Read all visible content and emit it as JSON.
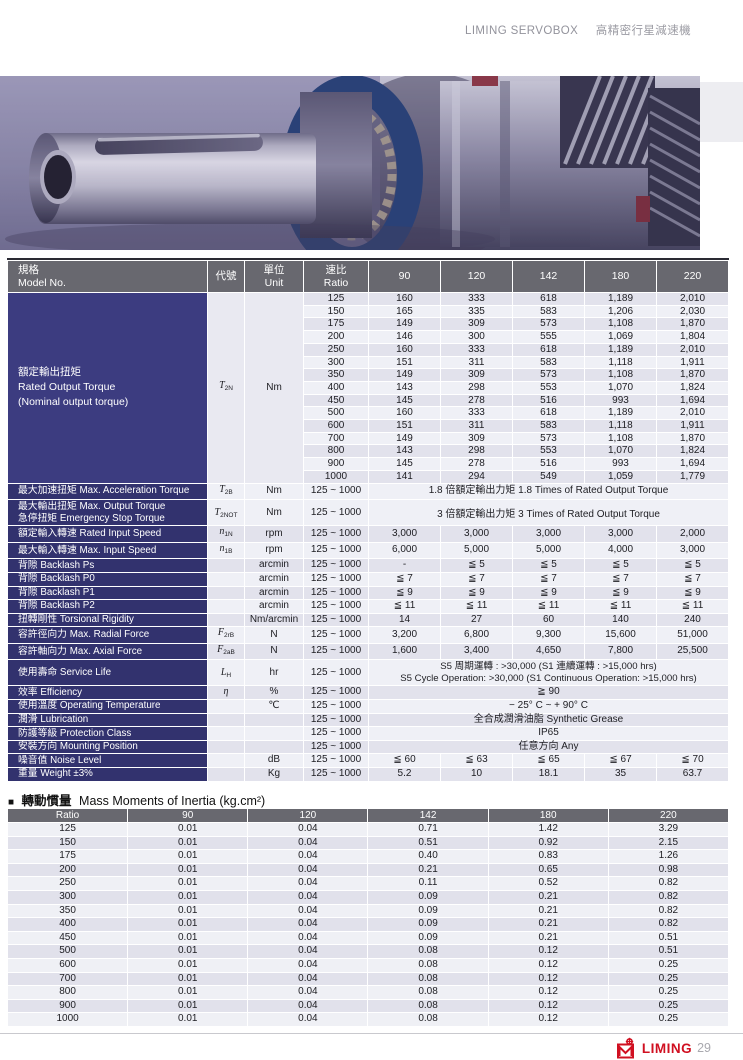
{
  "page": {
    "header_brand": "LIMING SERVOBOX",
    "header_product": "高精密行星減速機",
    "footer_brand": "LIMING",
    "page_number": "29",
    "bullet": "■",
    "accent_red": "#d01021",
    "header_gray": "#68686f",
    "label_navy": "#32326e",
    "label_indigo": "#3c3c80"
  },
  "main_table": {
    "headers": {
      "model_zh": "規格",
      "model_en": "Model No.",
      "symbol": "代號",
      "unit_zh": "單位",
      "unit_en": "Unit",
      "ratio_zh": "速比",
      "ratio_en": "Ratio",
      "sizes": [
        "90",
        "120",
        "142",
        "180",
        "220"
      ]
    },
    "torque_section": {
      "label_zh": "額定輸出扭矩",
      "label_en": "Rated Output Torque",
      "label_en2": "(Nominal output torque)",
      "symbol": {
        "base": "T",
        "sub": "2N"
      },
      "unit": "Nm",
      "rows": [
        {
          "ratio": "125",
          "values": [
            "160",
            "333",
            "618",
            "1,189",
            "2,010"
          ]
        },
        {
          "ratio": "150",
          "values": [
            "165",
            "335",
            "583",
            "1,206",
            "2,030"
          ]
        },
        {
          "ratio": "175",
          "values": [
            "149",
            "309",
            "573",
            "1,108",
            "1,870"
          ]
        },
        {
          "ratio": "200",
          "values": [
            "146",
            "300",
            "555",
            "1,069",
            "1,804"
          ]
        },
        {
          "ratio": "250",
          "values": [
            "160",
            "333",
            "618",
            "1,189",
            "2,010"
          ]
        },
        {
          "ratio": "300",
          "values": [
            "151",
            "311",
            "583",
            "1,118",
            "1,911"
          ]
        },
        {
          "ratio": "350",
          "values": [
            "149",
            "309",
            "573",
            "1,108",
            "1,870"
          ]
        },
        {
          "ratio": "400",
          "values": [
            "143",
            "298",
            "553",
            "1,070",
            "1,824"
          ]
        },
        {
          "ratio": "450",
          "values": [
            "145",
            "278",
            "516",
            "993",
            "1,694"
          ]
        },
        {
          "ratio": "500",
          "values": [
            "160",
            "333",
            "618",
            "1,189",
            "2,010"
          ]
        },
        {
          "ratio": "600",
          "values": [
            "151",
            "311",
            "583",
            "1,118",
            "1,911"
          ]
        },
        {
          "ratio": "700",
          "values": [
            "149",
            "309",
            "573",
            "1,108",
            "1,870"
          ]
        },
        {
          "ratio": "800",
          "values": [
            "143",
            "298",
            "553",
            "1,070",
            "1,824"
          ]
        },
        {
          "ratio": "900",
          "values": [
            "145",
            "278",
            "516",
            "993",
            "1,694"
          ]
        },
        {
          "ratio": "1000",
          "values": [
            "141",
            "294",
            "549",
            "1,059",
            "1,779"
          ]
        }
      ]
    },
    "spec_rows": [
      {
        "label": [
          [
            "最大加速扭矩",
            "Max. Acceleration Torque"
          ]
        ],
        "symbol": {
          "base": "T",
          "sub": "2B"
        },
        "unit": "Nm",
        "ratio": "125 ~ 1000",
        "span": "1.8 倍額定輸出力矩  1.8 Times of Rated Output Torque"
      },
      {
        "label": [
          [
            "最大輸出扭矩",
            "Max. Output Torque"
          ],
          [
            "急停扭矩",
            "Emergency Stop Torque"
          ]
        ],
        "symbol": {
          "base": "T",
          "sub": "2NOT"
        },
        "unit": "Nm",
        "ratio": "125 ~ 1000",
        "span": "3 倍額定輸出力矩  3 Times of Rated Output Torque",
        "tall": true
      },
      {
        "label": [
          [
            "額定輸入轉速",
            "Rated Input Speed"
          ]
        ],
        "symbol": {
          "base": "n",
          "sub": "1N"
        },
        "unit": "rpm",
        "ratio": "125 ~ 1000",
        "values": [
          "3,000",
          "3,000",
          "3,000",
          "3,000",
          "2,000"
        ]
      },
      {
        "label": [
          [
            "最大輸入轉速",
            "Max. Input Speed"
          ]
        ],
        "symbol": {
          "base": "n",
          "sub": "1B"
        },
        "unit": "rpm",
        "ratio": "125 ~ 1000",
        "values": [
          "6,000",
          "5,000",
          "5,000",
          "4,000",
          "3,000"
        ]
      },
      {
        "label": [
          [
            "背隙",
            "Backlash Ps"
          ]
        ],
        "unit": "arcmin",
        "ratio": "125 ~ 1000",
        "values": [
          "-",
          "≦ 5",
          "≦ 5",
          "≦ 5",
          "≦ 5"
        ]
      },
      {
        "label": [
          [
            "背隙",
            "Backlash P0"
          ]
        ],
        "unit": "arcmin",
        "ratio": "125 ~ 1000",
        "values": [
          "≦ 7",
          "≦ 7",
          "≦ 7",
          "≦ 7",
          "≦ 7"
        ]
      },
      {
        "label": [
          [
            "背隙",
            "Backlash P1"
          ]
        ],
        "unit": "arcmin",
        "ratio": "125 ~ 1000",
        "values": [
          "≦ 9",
          "≦ 9",
          "≦ 9",
          "≦ 9",
          "≦ 9"
        ]
      },
      {
        "label": [
          [
            "背隙",
            "Backlash P2"
          ]
        ],
        "unit": "arcmin",
        "ratio": "125 ~ 1000",
        "values": [
          "≦ 11",
          "≦ 11",
          "≦ 11",
          "≦ 11",
          "≦ 11"
        ]
      },
      {
        "label": [
          [
            "扭轉剛性",
            "Torsional Rigidity"
          ]
        ],
        "unit": "Nm/arcmin",
        "ratio": "125 ~ 1000",
        "values": [
          "14",
          "27",
          "60",
          "140",
          "240"
        ]
      },
      {
        "label": [
          [
            "容許徑向力",
            "Max. Radial Force"
          ]
        ],
        "symbol": {
          "base": "F",
          "sub": "2rB"
        },
        "unit": "N",
        "ratio": "125 ~ 1000",
        "values": [
          "3,200",
          "6,800",
          "9,300",
          "15,600",
          "51,000"
        ]
      },
      {
        "label": [
          [
            "容許軸向力",
            "Max. Axial Force"
          ]
        ],
        "symbol": {
          "base": "F",
          "sub": "2aB"
        },
        "unit": "N",
        "ratio": "125 ~ 1000",
        "values": [
          "1,600",
          "3,400",
          "4,650",
          "7,800",
          "25,500"
        ]
      },
      {
        "label": [
          [
            "使用壽命",
            "Service Life"
          ]
        ],
        "symbol": {
          "base": "L",
          "sub": "H"
        },
        "unit": "hr",
        "ratio": "125 ~ 1000",
        "span_lines": [
          "S5 周期運轉 : >30,000 (S1 連續運轉 : >15,000 hrs)",
          "S5 Cycle Operation: >30,000 (S1 Continuous Operation: >15,000 hrs)"
        ],
        "tall": true
      },
      {
        "label": [
          [
            "效率",
            "Efficiency"
          ]
        ],
        "symbol": {
          "base": "η",
          "sub": ""
        },
        "unit": "%",
        "ratio": "125 ~ 1000",
        "span": "≧ 90"
      },
      {
        "label": [
          [
            "使用溫度",
            "Operating Temperature"
          ]
        ],
        "unit": "℃",
        "ratio": "125 ~ 1000",
        "span": "− 25° C  ~  + 90° C"
      },
      {
        "label": [
          [
            "潤滑",
            "Lubrication"
          ]
        ],
        "unit": "",
        "ratio": "125 ~ 1000",
        "span": "全合成潤滑油脂  Synthetic Grease"
      },
      {
        "label": [
          [
            "防護等級",
            "Protection Class"
          ]
        ],
        "unit": "",
        "ratio": "125 ~ 1000",
        "span": "IP65"
      },
      {
        "label": [
          [
            "安裝方向",
            "Mounting Position"
          ]
        ],
        "unit": "",
        "ratio": "125 ~ 1000",
        "span": "任意方向  Any"
      },
      {
        "label": [
          [
            "噪音值",
            "Noise Level"
          ]
        ],
        "unit": "dB",
        "ratio": "125 ~ 1000",
        "values": [
          "≦ 60",
          "≦ 63",
          "≦ 65",
          "≦ 67",
          "≦ 70"
        ]
      },
      {
        "label": [
          [
            "重量",
            "Weight  ±3%"
          ]
        ],
        "unit": "Kg",
        "ratio": "125 ~ 1000",
        "values": [
          "5.2",
          "10",
          "18.1",
          "35",
          "63.7"
        ]
      }
    ]
  },
  "inertia_table": {
    "title_zh": "轉動慣量",
    "title_en": "Mass Moments of Inertia (kg.cm²)",
    "headers": [
      "Ratio",
      "90",
      "120",
      "142",
      "180",
      "220"
    ],
    "rows": [
      [
        "125",
        "0.01",
        "0.04",
        "0.71",
        "1.42",
        "3.29"
      ],
      [
        "150",
        "0.01",
        "0.04",
        "0.51",
        "0.92",
        "2.15"
      ],
      [
        "175",
        "0.01",
        "0.04",
        "0.40",
        "0.83",
        "1.26"
      ],
      [
        "200",
        "0.01",
        "0.04",
        "0.21",
        "0.65",
        "0.98"
      ],
      [
        "250",
        "0.01",
        "0.04",
        "0.11",
        "0.52",
        "0.82"
      ],
      [
        "300",
        "0.01",
        "0.04",
        "0.09",
        "0.21",
        "0.82"
      ],
      [
        "350",
        "0.01",
        "0.04",
        "0.09",
        "0.21",
        "0.82"
      ],
      [
        "400",
        "0.01",
        "0.04",
        "0.09",
        "0.21",
        "0.82"
      ],
      [
        "450",
        "0.01",
        "0.04",
        "0.09",
        "0.21",
        "0.51"
      ],
      [
        "500",
        "0.01",
        "0.04",
        "0.08",
        "0.12",
        "0.51"
      ],
      [
        "600",
        "0.01",
        "0.04",
        "0.08",
        "0.12",
        "0.25"
      ],
      [
        "700",
        "0.01",
        "0.04",
        "0.08",
        "0.12",
        "0.25"
      ],
      [
        "800",
        "0.01",
        "0.04",
        "0.08",
        "0.12",
        "0.25"
      ],
      [
        "900",
        "0.01",
        "0.04",
        "0.08",
        "0.12",
        "0.25"
      ],
      [
        "1000",
        "0.01",
        "0.04",
        "0.08",
        "0.12",
        "0.25"
      ]
    ]
  }
}
